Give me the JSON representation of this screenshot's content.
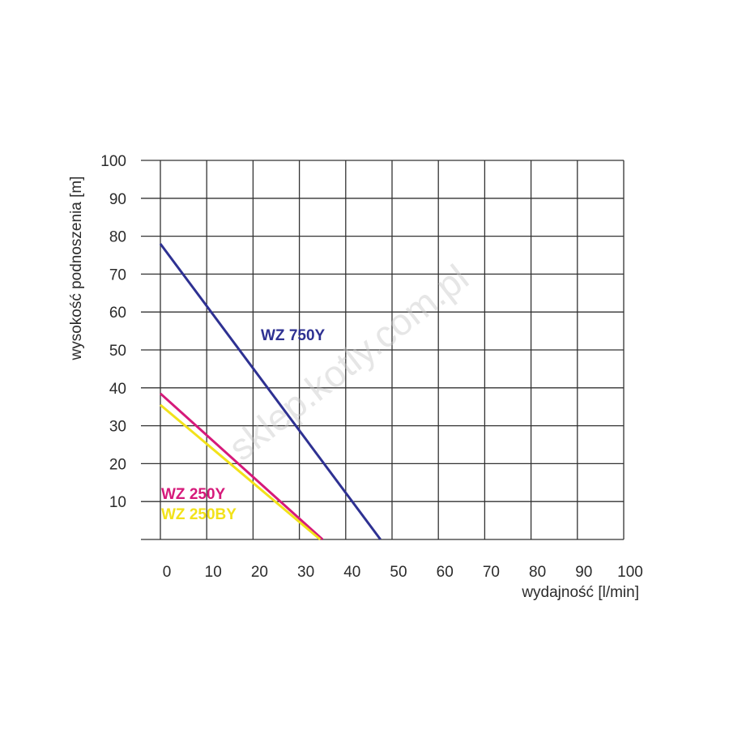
{
  "chart_data": {
    "type": "line",
    "xlabel": "wydajność [l/min]",
    "ylabel": "wysokość podnoszenia [m]",
    "xlim": [
      0,
      100
    ],
    "ylim": [
      0,
      100
    ],
    "x_ticks": [
      "0",
      "10",
      "20",
      "30",
      "40",
      "50",
      "60",
      "70",
      "80",
      "90",
      "100"
    ],
    "y_ticks": [
      "10",
      "20",
      "30",
      "40",
      "50",
      "60",
      "70",
      "80",
      "90",
      "100"
    ],
    "grid": true,
    "series": [
      {
        "name": "WZ 750Y",
        "color": "#2e3192",
        "x": [
          0,
          47.5
        ],
        "y": [
          78,
          0
        ]
      },
      {
        "name": "WZ 250Y",
        "color": "#d6197a",
        "x": [
          0,
          35
        ],
        "y": [
          38.5,
          0
        ]
      },
      {
        "name": "WZ 250BY",
        "color": "#f2e21a",
        "x": [
          0,
          34.5
        ],
        "y": [
          35.5,
          0
        ]
      }
    ],
    "watermark": "sklep.kotly.com.pl"
  }
}
